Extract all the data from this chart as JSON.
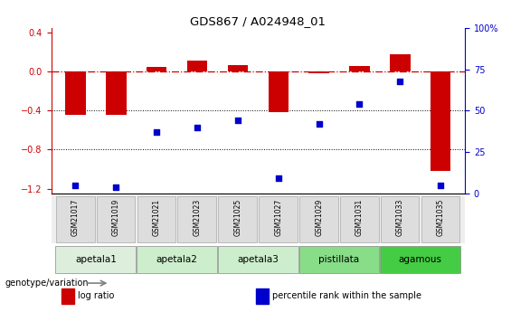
{
  "title": "GDS867 / A024948_01",
  "samples": [
    "GSM21017",
    "GSM21019",
    "GSM21021",
    "GSM21023",
    "GSM21025",
    "GSM21027",
    "GSM21029",
    "GSM21031",
    "GSM21033",
    "GSM21035"
  ],
  "log_ratio": [
    -0.44,
    -0.44,
    0.05,
    0.12,
    0.07,
    -0.41,
    -0.01,
    0.06,
    0.18,
    -1.02
  ],
  "percentile": [
    5,
    4,
    37,
    40,
    44,
    9,
    42,
    54,
    68,
    5
  ],
  "bar_color": "#cc0000",
  "dot_color": "#0000cc",
  "groups": [
    {
      "label": "apetala1",
      "start": 0,
      "end": 2,
      "color": "#ddeedd"
    },
    {
      "label": "apetala2",
      "start": 2,
      "end": 4,
      "color": "#cceecc"
    },
    {
      "label": "apetala3",
      "start": 4,
      "end": 6,
      "color": "#cceecc"
    },
    {
      "label": "pistillata",
      "start": 6,
      "end": 8,
      "color": "#88dd88"
    },
    {
      "label": "agamous",
      "start": 8,
      "end": 10,
      "color": "#44cc44"
    }
  ],
  "ylim_left": [
    -1.25,
    0.45
  ],
  "yticks_left": [
    0.4,
    0.0,
    -0.4,
    -0.8,
    -1.2
  ],
  "yticks_right": [
    0,
    25,
    50,
    75,
    100
  ],
  "right_axis_color": "#0000cc",
  "left_axis_color": "#cc0000",
  "hline_zero_color": "#cc0000",
  "hline_dotted_color": "black",
  "sample_box_color": "#cccccc",
  "legend_items": [
    {
      "label": "log ratio",
      "color": "#cc0000"
    },
    {
      "label": "percentile rank within the sample",
      "color": "#0000cc"
    }
  ]
}
